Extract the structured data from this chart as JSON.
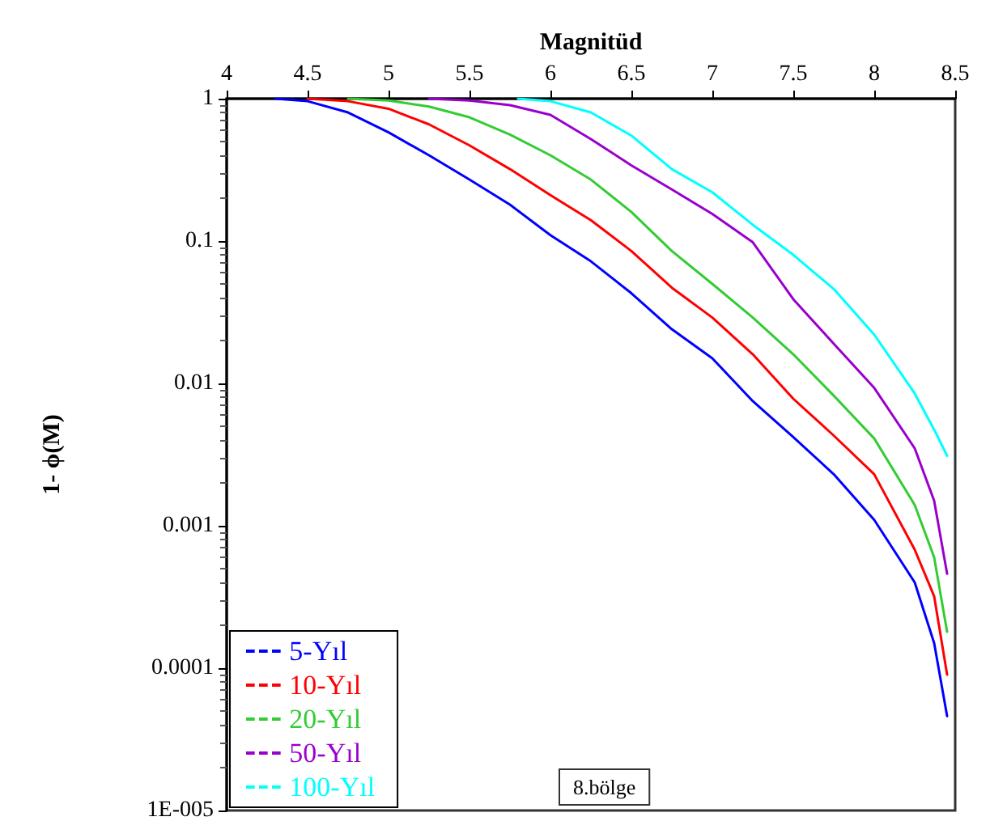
{
  "chart_data": {
    "type": "line",
    "xlabel": "Magnitüd",
    "ylabel": "1- ϕ(M)",
    "log": "y",
    "xlim": [
      4,
      8.5
    ],
    "xticks": [
      4,
      4.5,
      5,
      5.5,
      6,
      6.5,
      7,
      7.5,
      8,
      8.5
    ],
    "ylim": [
      1e-05,
      1
    ],
    "yticks": [
      1,
      0.1,
      0.01,
      0.001,
      0.0001,
      {
        "value": 1e-05,
        "label": "1E-005"
      }
    ],
    "grid": false,
    "legend": "bottom left",
    "marker": "none",
    "line_style": "solid",
    "annotations": [
      "8.bölge"
    ],
    "series": [
      {
        "name": "5-Yıl",
        "color": "#0000ff",
        "x": [
          4.3,
          4.5,
          4.75,
          5,
          5.25,
          5.5,
          5.75,
          6,
          6.25,
          6.5,
          6.75,
          7,
          7.25,
          7.5,
          7.75,
          8,
          8.25,
          8.37,
          8.45
        ],
        "values": [
          1,
          0.96,
          0.8,
          0.58,
          0.4,
          0.27,
          0.18,
          0.11,
          0.072,
          0.043,
          0.024,
          0.015,
          0.0075,
          0.0042,
          0.0023,
          0.0011,
          0.0004,
          0.00015,
          4.6e-05
        ]
      },
      {
        "name": "10-Yıl",
        "color": "#ff0000",
        "x": [
          4.5,
          4.75,
          5,
          5.25,
          5.5,
          5.75,
          6,
          6.25,
          6.5,
          6.75,
          7,
          7.25,
          7.5,
          7.75,
          8,
          8.25,
          8.37,
          8.45
        ],
        "values": [
          1,
          0.96,
          0.85,
          0.66,
          0.47,
          0.32,
          0.21,
          0.14,
          0.085,
          0.047,
          0.029,
          0.016,
          0.0078,
          0.0043,
          0.0023,
          0.00068,
          0.00032,
          9e-05
        ]
      },
      {
        "name": "20-Yıl",
        "color": "#33cc33",
        "x": [
          4.75,
          5,
          5.25,
          5.5,
          5.75,
          6,
          6.25,
          6.5,
          6.75,
          7,
          7.25,
          7.5,
          7.75,
          8,
          8.25,
          8.37,
          8.45
        ],
        "values": [
          1,
          0.97,
          0.88,
          0.74,
          0.56,
          0.4,
          0.27,
          0.16,
          0.085,
          0.05,
          0.029,
          0.016,
          0.0082,
          0.0041,
          0.0014,
          0.0006,
          0.00018
        ]
      },
      {
        "name": "50-Yıl",
        "color": "#9900cc",
        "x": [
          5.25,
          5.5,
          5.75,
          6,
          6.25,
          6.5,
          6.75,
          7,
          7.25,
          7.5,
          7.75,
          8,
          8.25,
          8.37,
          8.45
        ],
        "values": [
          1,
          0.97,
          0.9,
          0.77,
          0.52,
          0.34,
          0.23,
          0.155,
          0.098,
          0.039,
          0.019,
          0.0093,
          0.0035,
          0.0015,
          0.00046
        ]
      },
      {
        "name": "100-Yıl",
        "color": "#00ffff",
        "x": [
          5.8,
          6,
          6.25,
          6.5,
          6.75,
          7,
          7.25,
          7.5,
          7.75,
          8,
          8.25,
          8.38,
          8.45
        ],
        "values": [
          1,
          0.96,
          0.8,
          0.55,
          0.32,
          0.22,
          0.13,
          0.08,
          0.046,
          0.022,
          0.0085,
          0.0045,
          0.0031
        ]
      }
    ]
  }
}
